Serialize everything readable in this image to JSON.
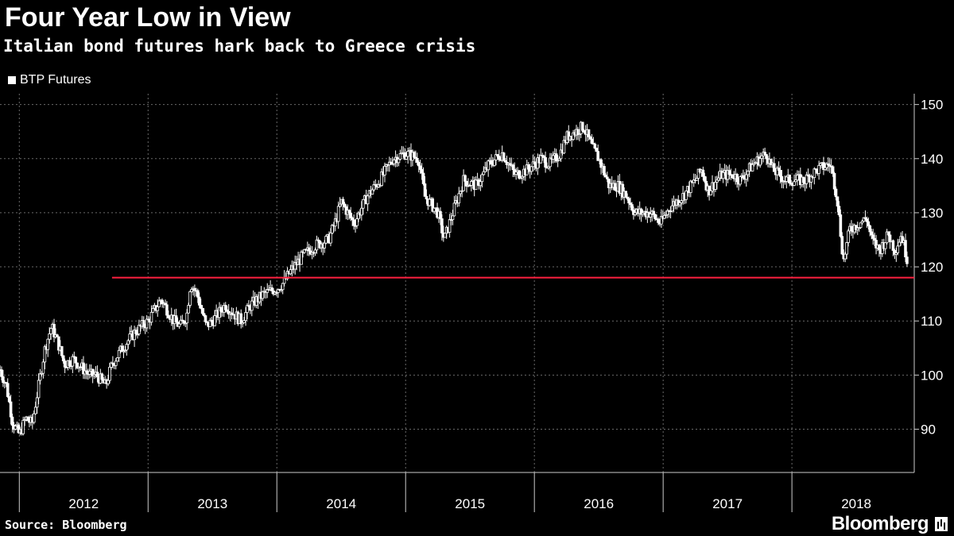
{
  "chart_data": {
    "type": "candlestick-line",
    "title": "Four Year Low in View",
    "subtitle": "Italian bond futures hark back to Greece crisis",
    "legend": [
      "BTP Futures"
    ],
    "legend_position": "top-left",
    "x_ticks": [
      "2012",
      "2013",
      "2014",
      "2015",
      "2016",
      "2017",
      "2018"
    ],
    "x_range": [
      2011.85,
      2018.95
    ],
    "y_ticks": [
      90,
      100,
      110,
      120,
      130,
      140,
      150
    ],
    "ylim": [
      82,
      152
    ],
    "y_axis_side": "right",
    "grid": true,
    "series": [
      {
        "name": "BTP Futures",
        "color": "#ffffff",
        "points": [
          [
            2011.85,
            101
          ],
          [
            2011.9,
            98
          ],
          [
            2011.95,
            91
          ],
          [
            2012.0,
            89
          ],
          [
            2012.05,
            92
          ],
          [
            2012.1,
            91
          ],
          [
            2012.15,
            98
          ],
          [
            2012.2,
            105
          ],
          [
            2012.25,
            109
          ],
          [
            2012.3,
            106
          ],
          [
            2012.35,
            102
          ],
          [
            2012.42,
            103
          ],
          [
            2012.5,
            101
          ],
          [
            2012.55,
            100
          ],
          [
            2012.6,
            100
          ],
          [
            2012.67,
            98
          ],
          [
            2012.72,
            102
          ],
          [
            2012.8,
            105
          ],
          [
            2012.9,
            108
          ],
          [
            2013.0,
            110
          ],
          [
            2013.1,
            114
          ],
          [
            2013.15,
            112
          ],
          [
            2013.2,
            110
          ],
          [
            2013.25,
            109
          ],
          [
            2013.3,
            111
          ],
          [
            2013.33,
            117
          ],
          [
            2013.38,
            115
          ],
          [
            2013.45,
            109
          ],
          [
            2013.5,
            110
          ],
          [
            2013.6,
            113
          ],
          [
            2013.68,
            111
          ],
          [
            2013.72,
            110
          ],
          [
            2013.8,
            113
          ],
          [
            2013.9,
            115
          ],
          [
            2014.0,
            116
          ],
          [
            2014.05,
            117
          ],
          [
            2014.1,
            119
          ],
          [
            2014.2,
            122
          ],
          [
            2014.3,
            124
          ],
          [
            2014.4,
            125
          ],
          [
            2014.45,
            128
          ],
          [
            2014.5,
            132
          ],
          [
            2014.55,
            130
          ],
          [
            2014.6,
            128
          ],
          [
            2014.7,
            133
          ],
          [
            2014.8,
            136
          ],
          [
            2014.9,
            140
          ],
          [
            2015.0,
            141
          ],
          [
            2015.1,
            140
          ],
          [
            2015.15,
            133
          ],
          [
            2015.25,
            130
          ],
          [
            2015.3,
            125
          ],
          [
            2015.38,
            131
          ],
          [
            2015.45,
            136
          ],
          [
            2015.55,
            135
          ],
          [
            2015.65,
            139
          ],
          [
            2015.75,
            141
          ],
          [
            2015.85,
            137
          ],
          [
            2015.95,
            138
          ],
          [
            2016.05,
            140
          ],
          [
            2016.12,
            139
          ],
          [
            2016.2,
            141
          ],
          [
            2016.25,
            144
          ],
          [
            2016.32,
            145
          ],
          [
            2016.38,
            146
          ],
          [
            2016.45,
            142
          ],
          [
            2016.5,
            140
          ],
          [
            2016.58,
            135
          ],
          [
            2016.65,
            135
          ],
          [
            2016.72,
            133
          ],
          [
            2016.78,
            130
          ],
          [
            2016.9,
            130
          ],
          [
            2016.98,
            128
          ],
          [
            2017.05,
            131
          ],
          [
            2017.15,
            133
          ],
          [
            2017.25,
            136
          ],
          [
            2017.3,
            138
          ],
          [
            2017.35,
            134
          ],
          [
            2017.45,
            137
          ],
          [
            2017.55,
            137
          ],
          [
            2017.6,
            136
          ],
          [
            2017.7,
            139
          ],
          [
            2017.8,
            141
          ],
          [
            2017.85,
            138
          ],
          [
            2017.95,
            136
          ],
          [
            2018.1,
            136
          ],
          [
            2018.2,
            138
          ],
          [
            2018.3,
            139
          ],
          [
            2018.35,
            133
          ],
          [
            2018.4,
            121
          ],
          [
            2018.45,
            127
          ],
          [
            2018.52,
            128
          ],
          [
            2018.58,
            129
          ],
          [
            2018.62,
            125
          ],
          [
            2018.68,
            123
          ],
          [
            2018.75,
            126
          ],
          [
            2018.8,
            123
          ],
          [
            2018.85,
            126
          ],
          [
            2018.9,
            121
          ]
        ]
      }
    ],
    "reference_line": {
      "y": 118,
      "x_start": 2012.72,
      "color": "#ff2040"
    }
  },
  "footer": {
    "source": "Source: Bloomberg",
    "brand": "Bloomberg",
    "brand_icon": "bloomberg-terminal-icon"
  }
}
